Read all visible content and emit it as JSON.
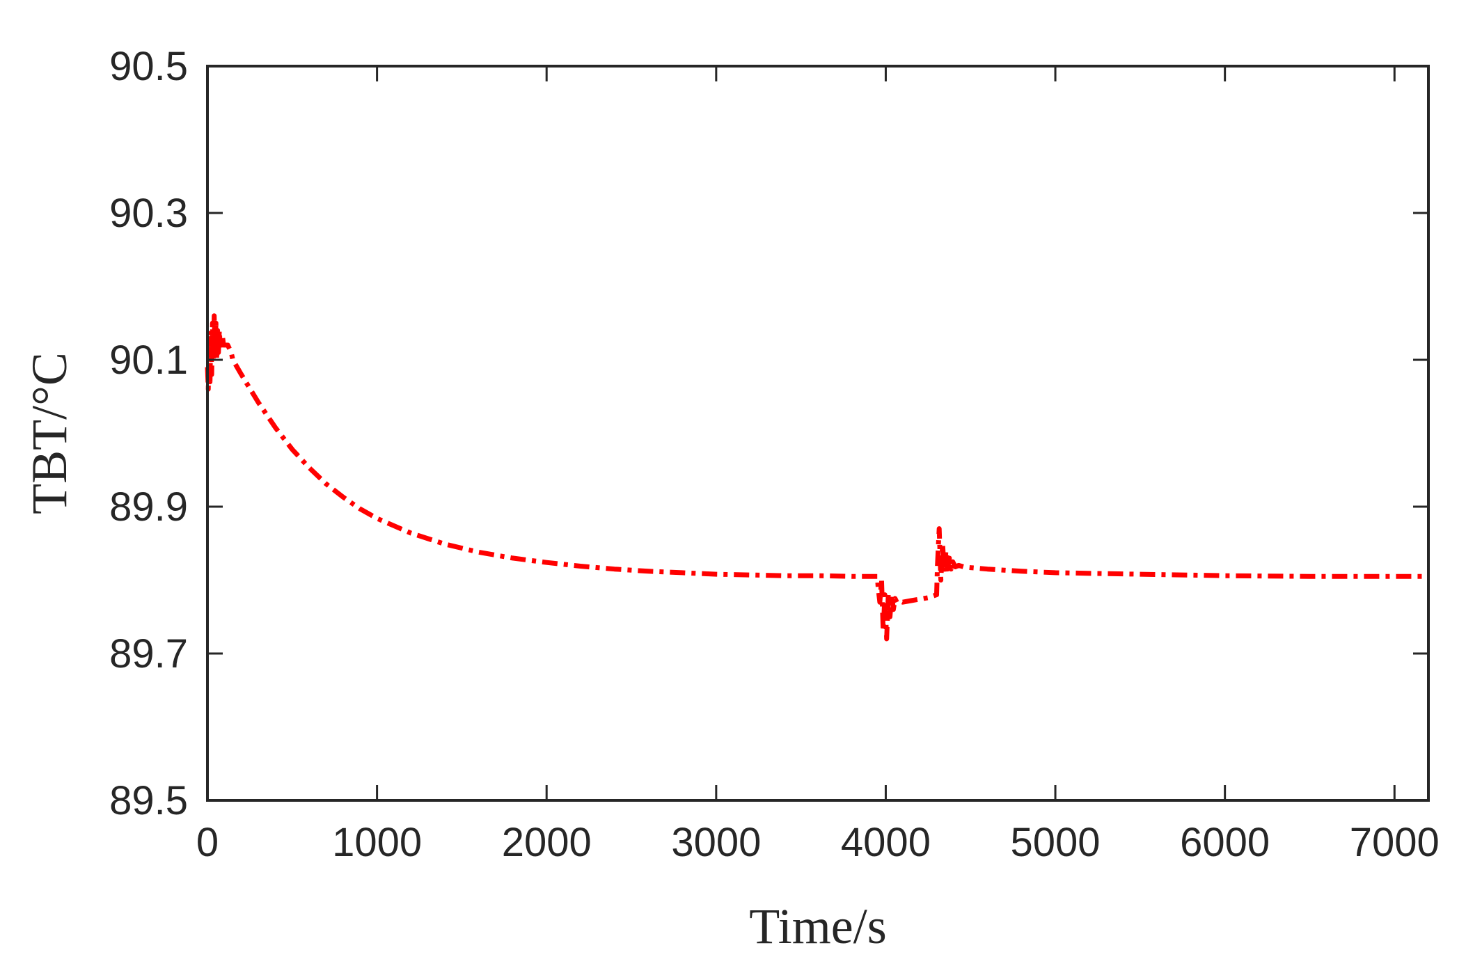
{
  "chart_data": {
    "type": "line",
    "xlabel": "Time/s",
    "ylabel": "TBT/°C",
    "xlim": [
      0,
      7200
    ],
    "ylim": [
      89.5,
      90.5
    ],
    "xticks": [
      0,
      1000,
      2000,
      3000,
      4000,
      5000,
      6000,
      7000
    ],
    "yticks": [
      89.5,
      89.7,
      89.9,
      90.1,
      90.3,
      90.5
    ],
    "xtick_labels": [
      "0",
      "1000",
      "2000",
      "3000",
      "4000",
      "5000",
      "6000",
      "7000"
    ],
    "ytick_labels": [
      "89.5",
      "89.7",
      "89.9",
      "90.1",
      "90.3",
      "90.5"
    ],
    "grid": false,
    "series": [
      {
        "color": "#ff0000",
        "line_style": "dash-dot",
        "x": [
          0,
          5,
          10,
          15,
          20,
          25,
          30,
          35,
          40,
          45,
          50,
          55,
          60,
          65,
          70,
          75,
          80,
          85,
          90,
          95,
          100,
          110,
          120,
          130,
          140,
          150,
          200,
          300,
          400,
          500,
          600,
          700,
          800,
          900,
          1000,
          1200,
          1400,
          1600,
          1800,
          2000,
          2200,
          2400,
          2600,
          2800,
          3000,
          3200,
          3400,
          3600,
          3800,
          3950,
          3955,
          3965,
          3975,
          3985,
          3995,
          4005,
          4015,
          4025,
          4035,
          4045,
          4055,
          4065,
          4080,
          4100,
          4150,
          4200,
          4250,
          4300,
          4305,
          4315,
          4325,
          4335,
          4345,
          4355,
          4365,
          4375,
          4385,
          4395,
          4410,
          4430,
          4460,
          4500,
          4600,
          4800,
          5000,
          5500,
          6000,
          6500,
          7000,
          7200
        ],
        "y": [
          90.09,
          90.06,
          90.12,
          90.07,
          90.14,
          90.08,
          90.15,
          90.1,
          90.16,
          90.11,
          90.15,
          90.1,
          90.14,
          90.11,
          90.14,
          90.12,
          90.13,
          90.12,
          90.13,
          90.12,
          90.12,
          90.12,
          90.12,
          90.115,
          90.11,
          90.1,
          90.08,
          90.042,
          90.008,
          89.978,
          89.953,
          89.931,
          89.913,
          89.897,
          89.884,
          89.864,
          89.849,
          89.838,
          89.83,
          89.824,
          89.819,
          89.815,
          89.812,
          89.81,
          89.808,
          89.807,
          89.806,
          89.806,
          89.805,
          89.805,
          89.79,
          89.77,
          89.8,
          89.73,
          89.78,
          89.72,
          89.78,
          89.75,
          89.78,
          89.76,
          89.775,
          89.77,
          89.772,
          89.77,
          89.772,
          89.774,
          89.776,
          89.78,
          89.82,
          89.87,
          89.8,
          89.85,
          89.81,
          89.84,
          89.815,
          89.83,
          89.815,
          89.825,
          89.818,
          89.82,
          89.818,
          89.817,
          89.815,
          89.812,
          89.81,
          89.808,
          89.806,
          89.805,
          89.805,
          89.805
        ]
      }
    ]
  }
}
